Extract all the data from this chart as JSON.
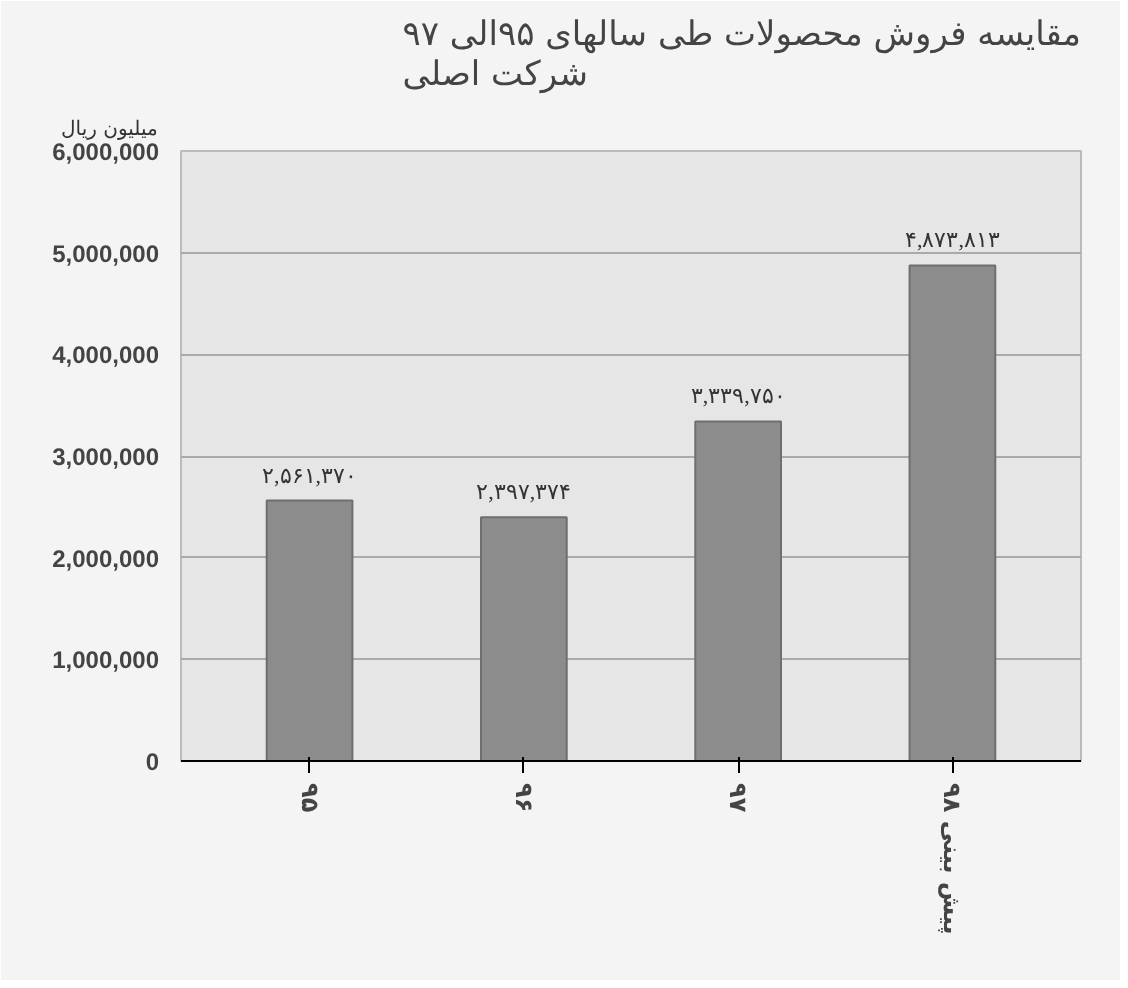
{
  "chart_data": {
    "type": "bar",
    "title": "مقایسه فروش محصولات طی سالهای ۹۵الی ۹۷\nشرکت اصلی",
    "ylabel": "میلیون ریال",
    "categories": [
      "۹۵",
      "۹۶",
      "۹۷",
      "پیش بینی ۹۸"
    ],
    "values": [
      2561370,
      2397374,
      3339750,
      4873813
    ],
    "value_labels": [
      "۲,۵۶۱,۳۷۰",
      "۲,۳۹۷,۳۷۴",
      "۳,۳۳۹,۷۵۰",
      "۴,۸۷۳,۸۱۳"
    ],
    "color": "#8c8c8c",
    "ylim": [
      0,
      6000000
    ],
    "yticks": [
      {
        "value": 0,
        "label": "0"
      },
      {
        "value": 1000000,
        "label": "1,000,000"
      },
      {
        "value": 2000000,
        "label": "2,000,000"
      },
      {
        "value": 3000000,
        "label": "3,000,000"
      },
      {
        "value": 4000000,
        "label": "4,000,000"
      },
      {
        "value": 5000000,
        "label": "5,000,000"
      },
      {
        "value": 6000000,
        "label": "6,000,000"
      }
    ],
    "grid": "y"
  }
}
